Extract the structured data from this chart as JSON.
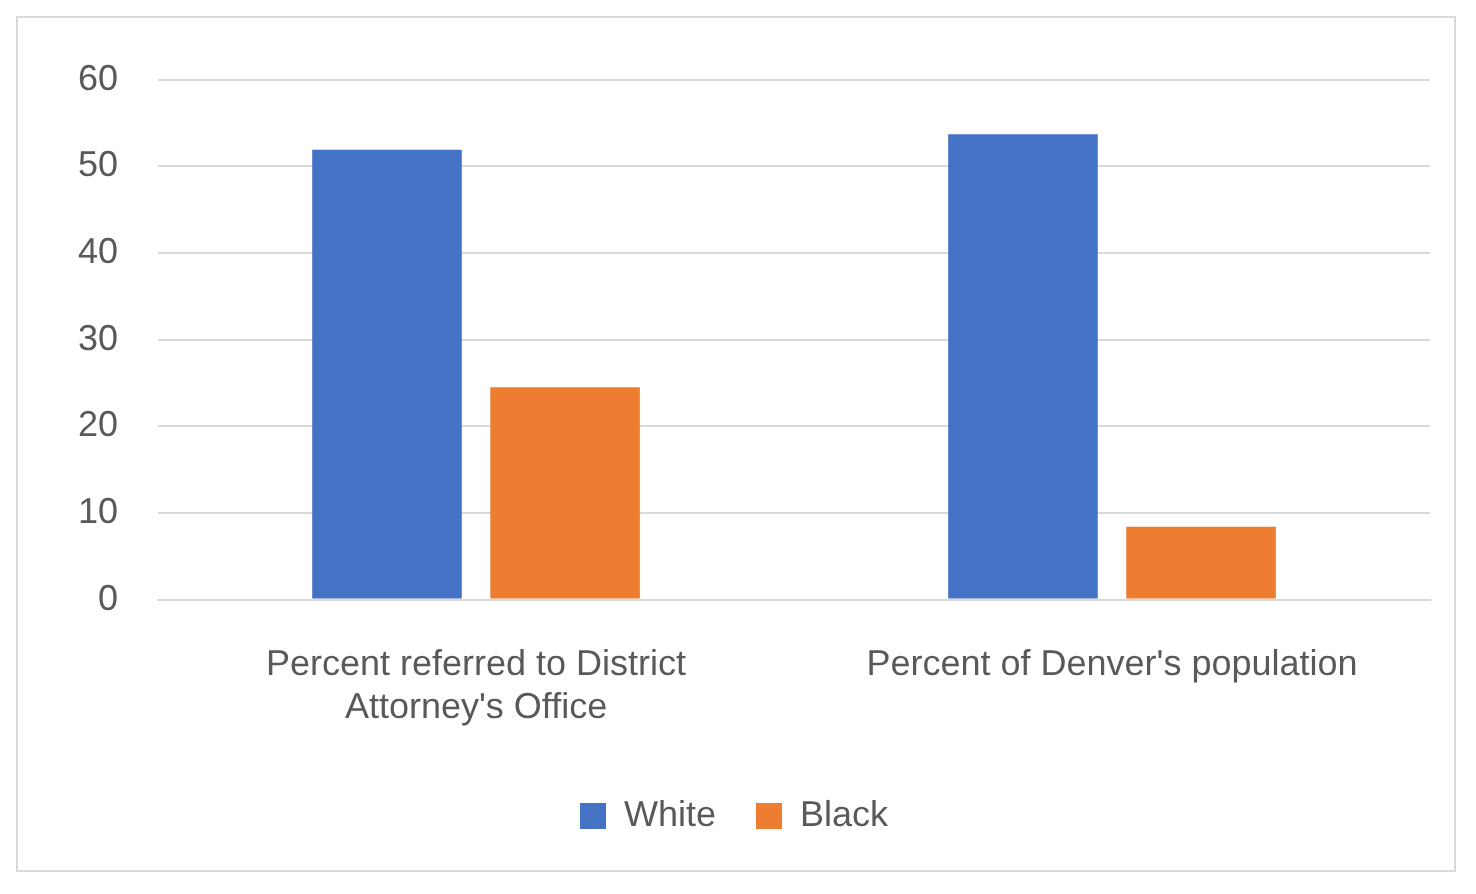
{
  "chart_data": {
    "type": "bar",
    "categories": [
      "Percent referred to District Attorney's Office",
      "Percent of Denver's population"
    ],
    "series": [
      {
        "name": "White",
        "color": "#4472c4",
        "values": [
          51.9,
          53.7
        ]
      },
      {
        "name": "Black",
        "color": "#ed7d31",
        "values": [
          24.5,
          8.4
        ]
      }
    ],
    "ylim": [
      0,
      60
    ],
    "yticks": [
      0,
      10,
      20,
      30,
      40,
      50,
      60
    ],
    "grid": "y",
    "legend": "bottom"
  }
}
